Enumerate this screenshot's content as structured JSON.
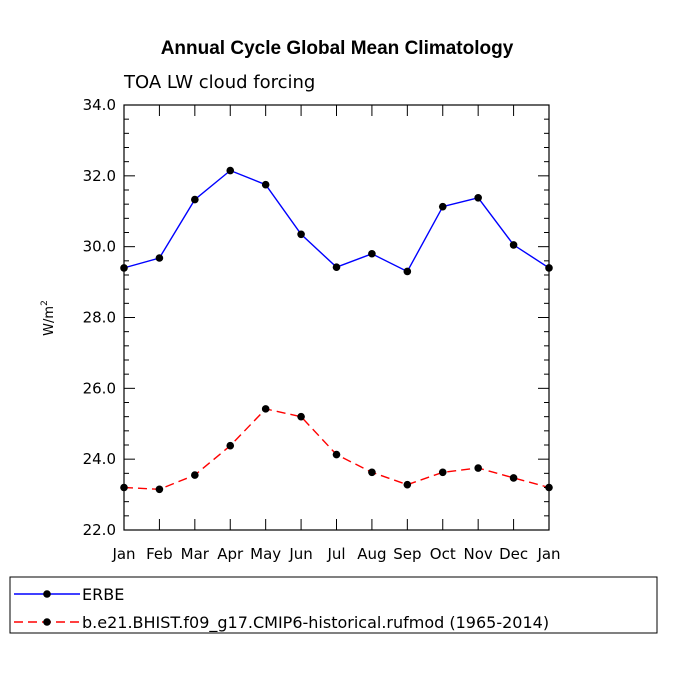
{
  "chart_data": {
    "type": "line",
    "title": "Annual Cycle Global Mean Climatology",
    "subtitle": "TOA LW cloud forcing",
    "xlabel": "",
    "ylabel_base": "W/m",
    "ylabel_sup": "2",
    "categories": [
      "Jan",
      "Feb",
      "Mar",
      "Apr",
      "May",
      "Jun",
      "Jul",
      "Aug",
      "Sep",
      "Oct",
      "Nov",
      "Dec",
      "Jan"
    ],
    "ylim": [
      22.0,
      34.0
    ],
    "yticks": [
      "22.0",
      "24.0",
      "26.0",
      "28.0",
      "30.0",
      "32.0",
      "34.0"
    ],
    "ytick_values": [
      22,
      24,
      26,
      28,
      30,
      32,
      34
    ],
    "series": [
      {
        "name": "ERBE",
        "color": "#0000ff",
        "dash": "solid",
        "values": [
          29.4,
          29.68,
          31.33,
          32.15,
          31.75,
          30.35,
          29.42,
          29.8,
          29.3,
          31.13,
          31.38,
          30.05,
          29.4
        ]
      },
      {
        "name": "b.e21.BHIST.f09_g17.CMIP6-historical.rufmod (1965-2014)",
        "color": "#ff0000",
        "dash": "dashed",
        "values": [
          23.2,
          23.15,
          23.55,
          24.38,
          25.42,
          25.2,
          24.13,
          23.63,
          23.28,
          23.63,
          23.75,
          23.47,
          23.2
        ]
      }
    ],
    "legend_position": "bottom"
  }
}
